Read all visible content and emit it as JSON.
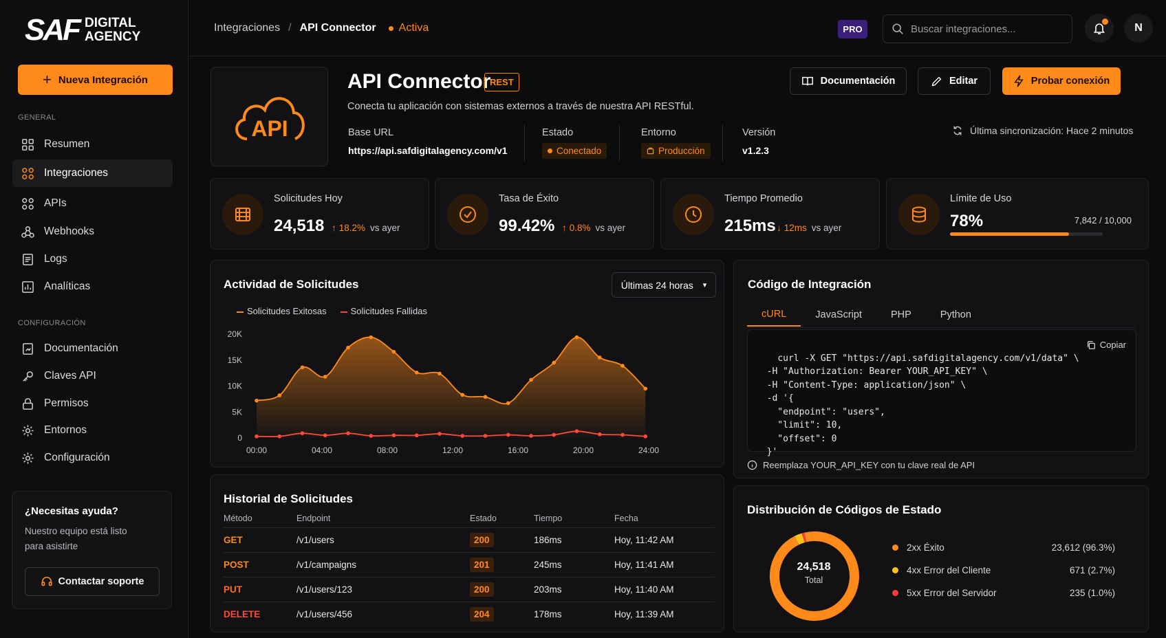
{
  "brand": {
    "mark": "SAF",
    "line1": "DIGITAL",
    "line2": "AGENCY"
  },
  "sidebar": {
    "new_button": "Nueva Integración",
    "section_general": "GENERAL",
    "general_items": [
      {
        "label": "Resumen",
        "icon": "grid-icon"
      },
      {
        "label": "Integraciones",
        "icon": "integrations-icon"
      },
      {
        "label": "APIs",
        "icon": "apis-icon"
      },
      {
        "label": "Webhooks",
        "icon": "webhooks-icon"
      },
      {
        "label": "Logs",
        "icon": "logs-icon"
      },
      {
        "label": "Analíticas",
        "icon": "analytics-icon"
      }
    ],
    "section_config": "CONFIGURACIÓN",
    "config_items": [
      {
        "label": "Documentación",
        "icon": "doc-icon"
      },
      {
        "label": "Claves API",
        "icon": "key-icon"
      },
      {
        "label": "Permisos",
        "icon": "lock-icon"
      },
      {
        "label": "Entornos",
        "icon": "env-gear-icon"
      },
      {
        "label": "Configuración",
        "icon": "gear-icon"
      }
    ],
    "help": {
      "title": "¿Necesitas ayuda?",
      "desc": "Nuestro equipo está listo para asistirte",
      "button": "Contactar soporte"
    }
  },
  "topbar": {
    "breadcrumb": [
      "Integraciones",
      "/",
      "API Connector"
    ],
    "status": "Activa",
    "pro": "PRO",
    "search_placeholder": "Buscar integraciones...",
    "avatar": "N"
  },
  "header": {
    "logo_text": "API",
    "title": "API Connector",
    "badge": "REST",
    "description": "Conecta tu aplicación con sistemas externos a través de nuestra API RESTful.",
    "meta": {
      "base_url_label": "Base URL",
      "base_url": "https://api.safdigitalagency.com/v1",
      "estado_label": "Estado",
      "estado": "Conectado",
      "entorno_label": "Entorno",
      "entorno": "Producción",
      "version_label": "Versión",
      "version": "v1.2.3"
    },
    "buttons": {
      "docs": "Documentación",
      "edit": "Editar",
      "test": "Probar conexión"
    },
    "sync": "Última sincronización: Hace 2 minutos"
  },
  "stats": [
    {
      "label": "Solicitudes Hoy",
      "value": "24,518",
      "delta": "18.2%",
      "direction": "up",
      "suffix": "vs ayer"
    },
    {
      "label": "Tasa de Éxito",
      "value": "99.42%",
      "delta": "0.8%",
      "direction": "up",
      "suffix": "vs ayer"
    },
    {
      "label": "Tiempo Promedio",
      "value": "215ms",
      "delta": "12ms",
      "direction": "down",
      "suffix": "vs ayer"
    },
    {
      "label": "Límite de Uso",
      "value": "78%",
      "usage": "7,842 / 10,000",
      "fraction": 0.78
    }
  ],
  "activity": {
    "title": "Actividad de Solicitudes",
    "range": "Últimas 24 horas",
    "legend": [
      "Solicitudes Exitosas",
      "Solicitudes Fallidas"
    ]
  },
  "chart_data": {
    "type": "area",
    "title": "Actividad de Solicitudes",
    "x_ticks": [
      "00:00",
      "04:00",
      "08:00",
      "12:00",
      "16:00",
      "20:00",
      "24:00"
    ],
    "y_ticks": [
      "0",
      "5K",
      "10K",
      "15K",
      "20K"
    ],
    "ylim": [
      0,
      20000
    ],
    "xlim": [
      0,
      24
    ],
    "legend_placement": "top-left",
    "grid": false,
    "series": [
      {
        "name": "Solicitudes Exitosas",
        "color": "#ff8a1a",
        "x": [
          0,
          1.4,
          2.8,
          4.2,
          5.6,
          7,
          8.4,
          9.8,
          11.2,
          12.6,
          14,
          15.4,
          16.8,
          18.2,
          19.6,
          21,
          22.4,
          23.8
        ],
        "y": [
          7200,
          8200,
          13600,
          11800,
          17400,
          19400,
          16600,
          12600,
          12400,
          8300,
          7900,
          6700,
          11200,
          14500,
          19400,
          15500,
          13900,
          9500
        ]
      },
      {
        "name": "Solicitudes Fallidas",
        "color": "#ff4a3a",
        "x": [
          0,
          1.4,
          2.8,
          4.2,
          5.6,
          7,
          8.4,
          9.8,
          11.2,
          12.6,
          14,
          15.4,
          16.8,
          18.2,
          19.6,
          21,
          22.4,
          23.8
        ],
        "y": [
          300,
          300,
          900,
          500,
          900,
          400,
          500,
          500,
          800,
          400,
          400,
          600,
          400,
          600,
          1300,
          700,
          600,
          300
        ]
      }
    ]
  },
  "code": {
    "title": "Código de Integración",
    "tabs": [
      "cURL",
      "JavaScript",
      "PHP",
      "Python"
    ],
    "copy": "Copiar",
    "snippet": "curl -X GET \"https://api.safdigitalagency.com/v1/data\" \\\n  -H \"Authorization: Bearer YOUR_API_KEY\" \\\n  -H \"Content-Type: application/json\" \\\n  -d '{\n    \"endpoint\": \"users\",\n    \"limit\": 10,\n    \"offset\": 0\n  }'",
    "note": "Reemplaza YOUR_API_KEY con tu clave real de API"
  },
  "history": {
    "title": "Historial de Solicitudes",
    "columns": [
      "Método",
      "Endpoint",
      "Estado",
      "Tiempo",
      "Fecha"
    ],
    "rows": [
      {
        "method": "GET",
        "endpoint": "/v1/users",
        "status": "200",
        "time": "186ms",
        "date": "Hoy, 11:42 AM",
        "color": "#ff8a1a"
      },
      {
        "method": "POST",
        "endpoint": "/v1/campaigns",
        "status": "201",
        "time": "245ms",
        "date": "Hoy, 11:41 AM",
        "color": "#ff8a1a"
      },
      {
        "method": "PUT",
        "endpoint": "/v1/users/123",
        "status": "200",
        "time": "203ms",
        "date": "Hoy, 11:40 AM",
        "color": "#ff6a1a"
      },
      {
        "method": "DELETE",
        "endpoint": "/v1/users/456",
        "status": "204",
        "time": "178ms",
        "date": "Hoy, 11:39 AM",
        "color": "#ff4a3a"
      }
    ]
  },
  "distribution": {
    "title": "Distribución de Códigos de Estado",
    "total": "24,518",
    "total_label": "Total",
    "items": [
      {
        "label": "2xx Éxito",
        "value": "23,612 (96.3%)",
        "pct": 96.3,
        "color": "#ff8a1a"
      },
      {
        "label": "4xx Error del Cliente",
        "value": "671 (2.7%)",
        "pct": 2.7,
        "color": "#ffc21a"
      },
      {
        "label": "5xx Error del Servidor",
        "value": "235 (1.0%)",
        "pct": 1.0,
        "color": "#ff3a3a"
      }
    ]
  }
}
